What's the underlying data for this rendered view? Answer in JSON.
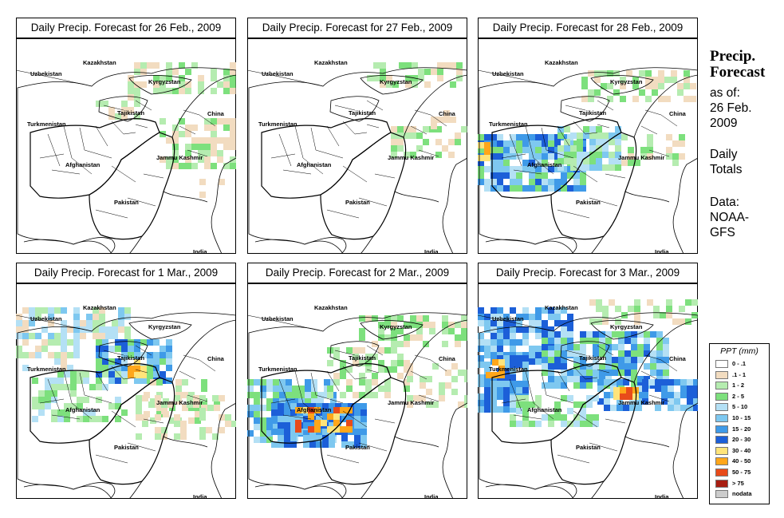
{
  "panels": [
    {
      "title": "Daily Precip. Forecast for  26 Feb., 2009",
      "pattern": "light"
    },
    {
      "title": "Daily Precip. Forecast for  27 Feb., 2009",
      "pattern": "lighter"
    },
    {
      "title": "Daily Precip. Forecast for  28 Feb., 2009",
      "pattern": "band-west"
    },
    {
      "title": "Daily Precip. Forecast for  1 Mar., 2009",
      "pattern": "north"
    },
    {
      "title": "Daily Precip. Forecast for  2 Mar., 2009",
      "pattern": "heavy-south"
    },
    {
      "title": "Daily Precip. Forecast for  3 Mar., 2009",
      "pattern": "widespread"
    }
  ],
  "map_labels": {
    "kazakhstan": "Kazakhstan",
    "uzbekistan": "Uzbekistan",
    "kyrgyzstan": "Kyrgyzstan",
    "tajikistan": "Tajikistan",
    "turkmenistan": "Turkmenistan",
    "china": "China",
    "jammu_kashmir": "Jammu Kashmir",
    "afghanistan": "Afghanistan",
    "pakistan": "Pakistan",
    "india": "India"
  },
  "sidebar": {
    "heading_line1": "Precip.",
    "heading_line2": "Forecast",
    "as_of_label": "as of:",
    "date_line1": "26 Feb.",
    "date_line2": "2009",
    "totals_line1": "Daily",
    "totals_line2": "Totals",
    "data_label": "Data:",
    "source_line1": "NOAA-",
    "source_line2": "GFS"
  },
  "legend": {
    "title": "PPT (mm)",
    "items": [
      {
        "label": "0 - .1",
        "color": "#ffffff"
      },
      {
        "label": ".1 - 1",
        "color": "#f2dcc0"
      },
      {
        "label": "1 - 2",
        "color": "#b5ecb0"
      },
      {
        "label": "2 - 5",
        "color": "#7de07d"
      },
      {
        "label": "5 - 10",
        "color": "#b4e0f5"
      },
      {
        "label": "10 - 15",
        "color": "#7ec8f0"
      },
      {
        "label": "15 - 20",
        "color": "#3f9ae8"
      },
      {
        "label": "20 - 30",
        "color": "#1c5fd8"
      },
      {
        "label": "30 - 40",
        "color": "#ffe47a"
      },
      {
        "label": "40 - 50",
        "color": "#ffa61a"
      },
      {
        "label": "50 - 75",
        "color": "#e84b1a"
      },
      {
        "label": "> 75",
        "color": "#a81e12"
      },
      {
        "label": "nodata",
        "color": "#cccccc"
      }
    ]
  }
}
